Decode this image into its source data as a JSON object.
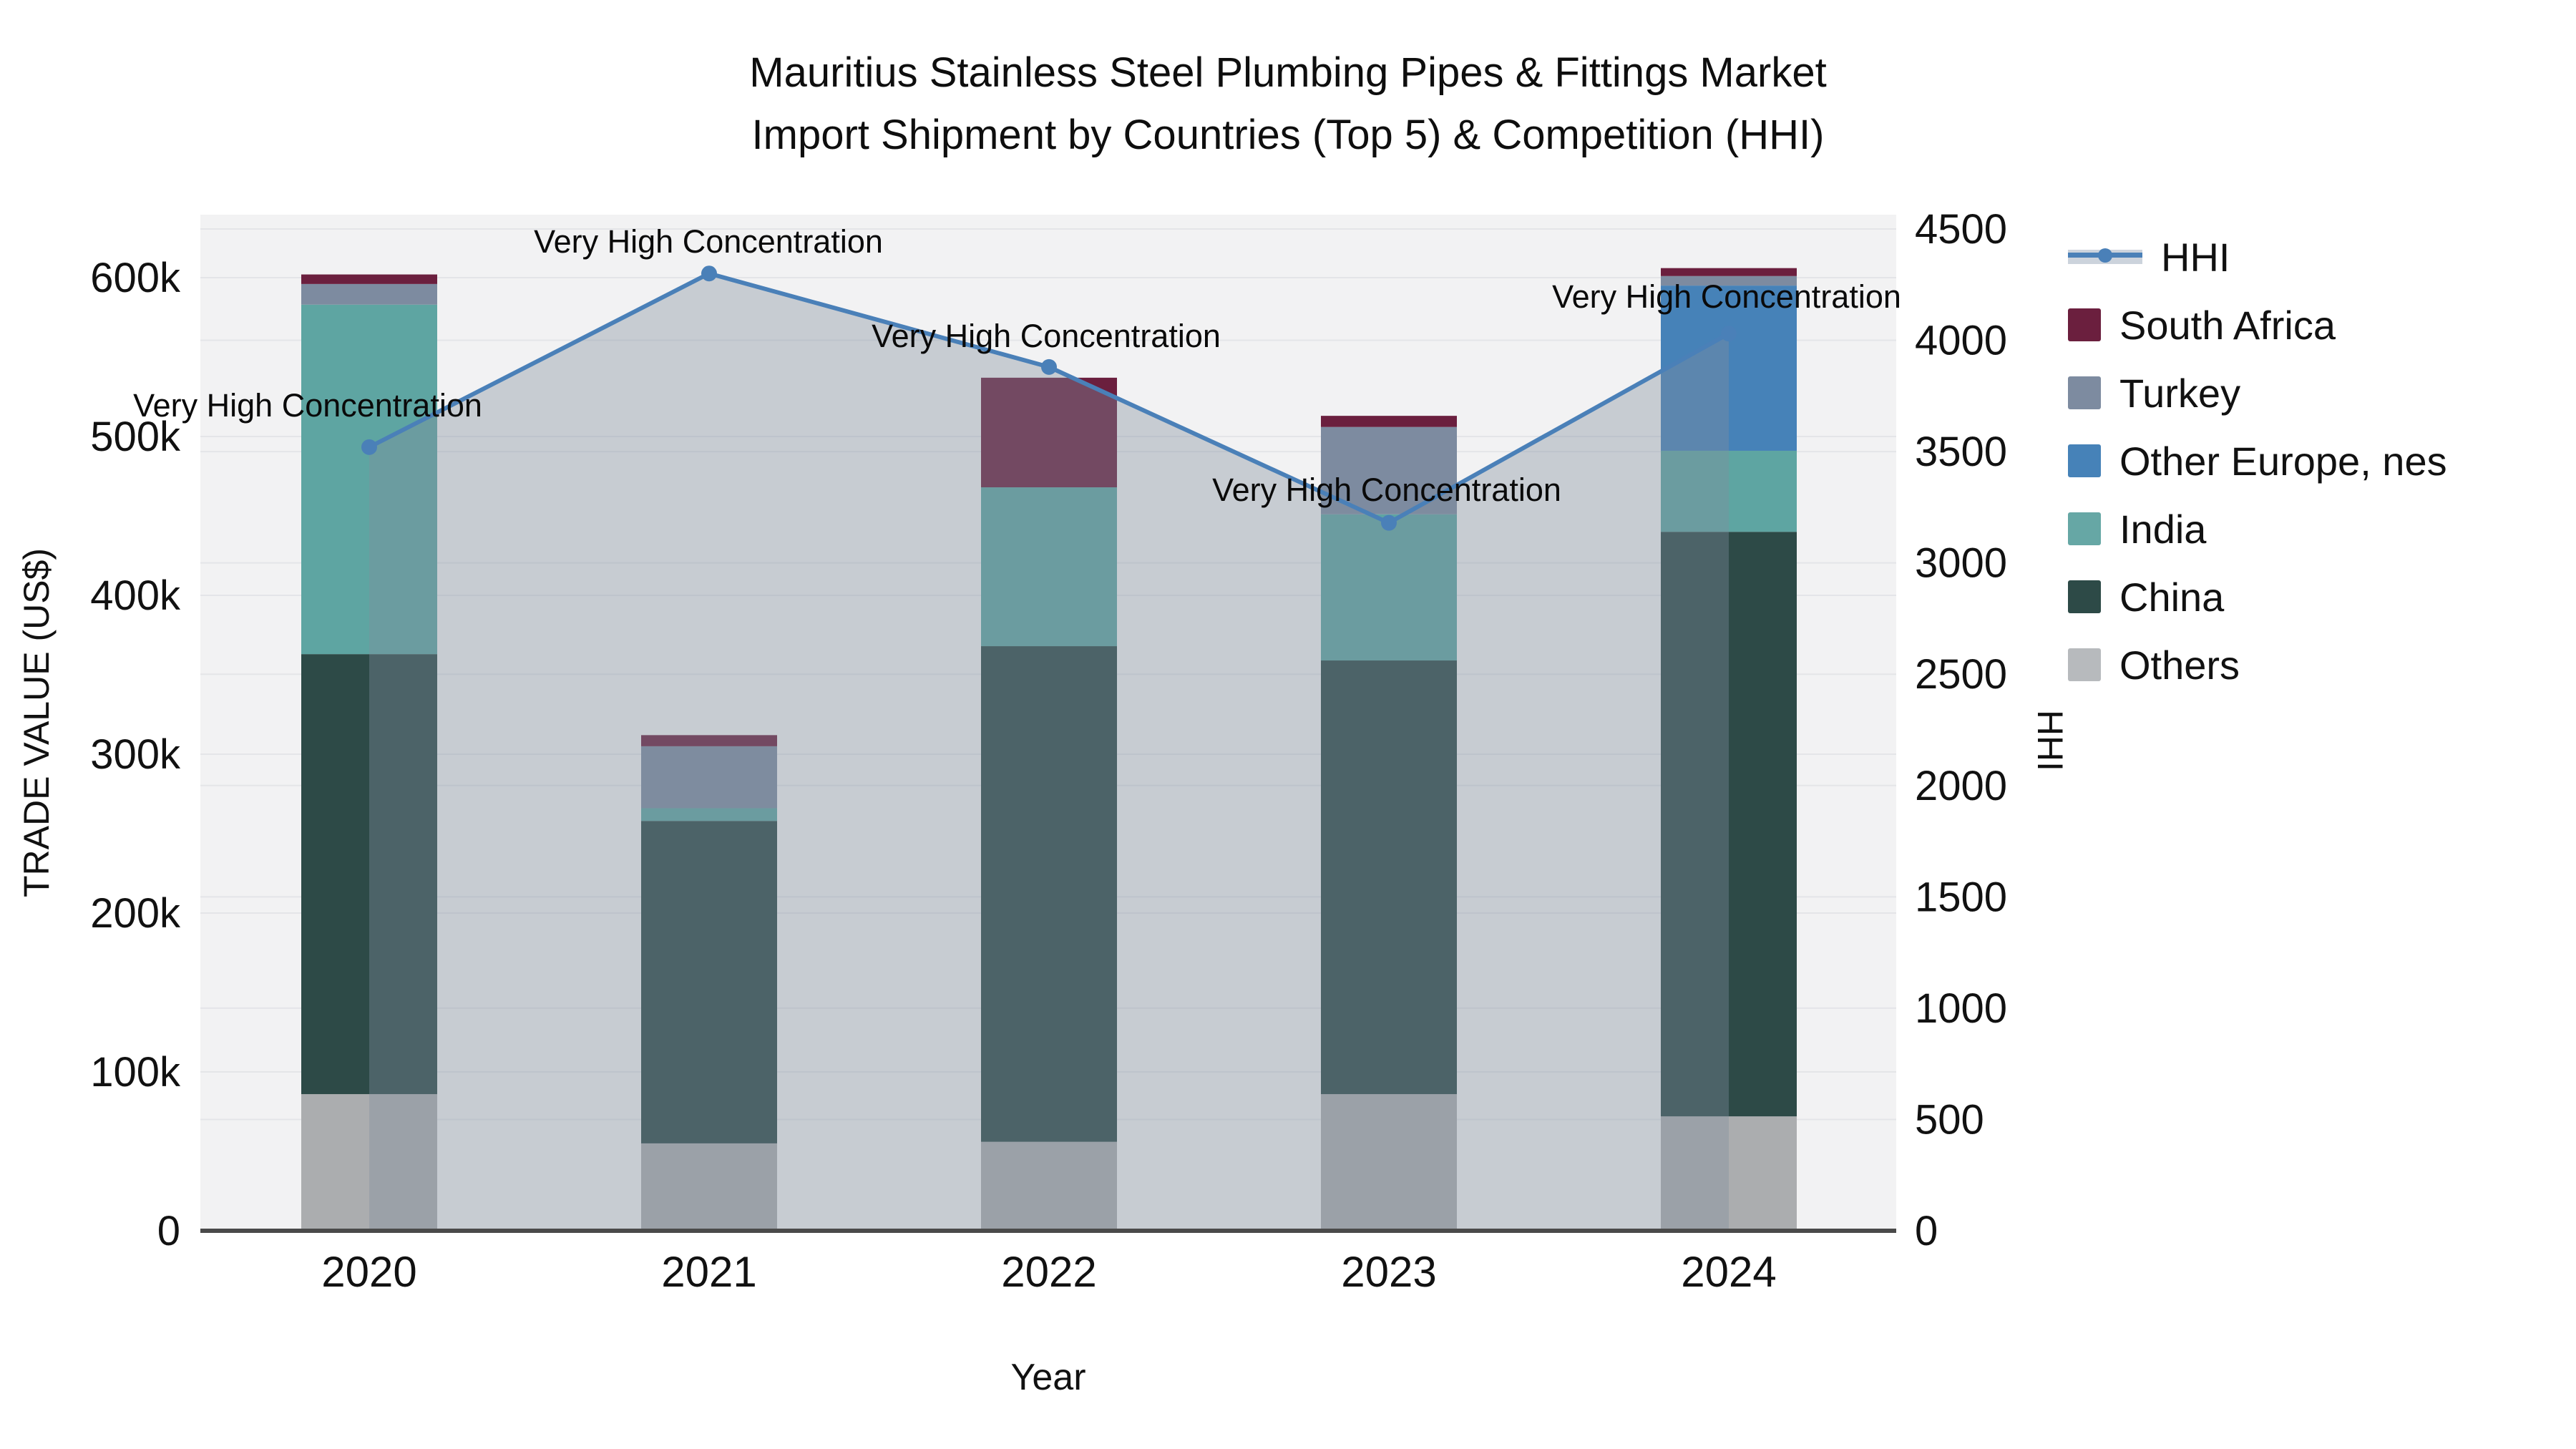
{
  "title": {
    "line1": "Mauritius Stainless Steel Plumbing Pipes & Fittings Market",
    "line2": "Import Shipment by Countries (Top 5) & Competition (HHI)"
  },
  "chart_data": {
    "type": "bar",
    "stacked": true,
    "categories": [
      "2020",
      "2021",
      "2022",
      "2023",
      "2024"
    ],
    "series": [
      {
        "name": "Others",
        "color": "#abadaf",
        "values": [
          86,
          55,
          56,
          86,
          72
        ]
      },
      {
        "name": "China",
        "color": "#2d4a47",
        "values": [
          277,
          203,
          312,
          273,
          368
        ]
      },
      {
        "name": "India",
        "color": "#5ea5a2",
        "values": [
          220,
          8,
          100,
          92,
          51
        ]
      },
      {
        "name": "Other Europe, nes",
        "color": "#4682b8",
        "values": [
          0,
          0,
          0,
          0,
          104
        ]
      },
      {
        "name": "Turkey",
        "color": "#7d8ba0",
        "values": [
          13,
          39,
          0,
          55,
          6
        ]
      },
      {
        "name": "South Africa",
        "color": "#6b1f3e",
        "values": [
          6,
          7,
          69,
          7,
          5
        ]
      }
    ],
    "line_series": {
      "name": "HHI",
      "color": "#4a80b8",
      "fill_color": "rgba(128,141,158,0.38)",
      "values": [
        3520,
        4300,
        3880,
        3180,
        4030
      ]
    },
    "annotations": [
      {
        "text": "Very High Concentration",
        "x": 430,
        "y": 567
      },
      {
        "text": "Very High Concentration",
        "x": 990,
        "y": 338
      },
      {
        "text": "Very High Concentration",
        "x": 1462,
        "y": 470
      },
      {
        "text": "Very High Concentration",
        "x": 1938,
        "y": 685
      },
      {
        "text": "Very High Concentration",
        "x": 2413,
        "y": 415
      }
    ],
    "xlabel": "Year",
    "ylabel_left": "TRADE VALUE (US$)",
    "ylabel_right": "HHI",
    "y_left_ticks": [
      "0",
      "100k",
      "200k",
      "300k",
      "400k",
      "500k",
      "600k"
    ],
    "y_left_tick_values": [
      0,
      100,
      200,
      300,
      400,
      500,
      600
    ],
    "y_right_ticks": [
      "0",
      "500",
      "1000",
      "1500",
      "2000",
      "2500",
      "3000",
      "3500",
      "4000",
      "4500"
    ],
    "y_right_tick_values": [
      0,
      500,
      1000,
      1500,
      2000,
      2500,
      3000,
      3500,
      4000,
      4500
    ],
    "ylim_left": [
      0,
      640
    ],
    "ylim_right": [
      0,
      4500
    ],
    "grid": true,
    "plot_bg": "#f2f2f3",
    "grid_color": "#e4e5e8",
    "axis_line_color": "#4a4a4a",
    "legend_position": "right"
  },
  "legend": {
    "items": [
      {
        "label": "HHI",
        "type": "line",
        "color": "#4a80b8",
        "band": "#ccd3dc"
      },
      {
        "label": "South Africa",
        "type": "square",
        "color": "#6b1f3e"
      },
      {
        "label": "Turkey",
        "type": "square",
        "color": "#7d8ba0"
      },
      {
        "label": "Other Europe, nes",
        "type": "square",
        "color": "#4682b8"
      },
      {
        "label": "India",
        "type": "square",
        "color": "#66a7a5"
      },
      {
        "label": "China",
        "type": "square",
        "color": "#2d4a47"
      },
      {
        "label": "Others",
        "type": "square",
        "color": "#b7babd"
      }
    ]
  }
}
